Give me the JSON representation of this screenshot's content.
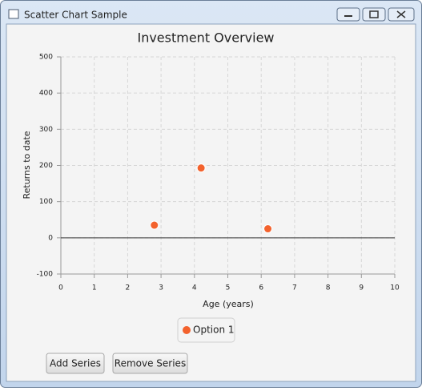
{
  "window": {
    "title": "Scatter Chart Sample"
  },
  "chart_data": {
    "type": "scatter",
    "title": "Investment Overview",
    "x_label": "Age (years)",
    "y_label": "Returns to date",
    "series": [
      {
        "name": "Option 1",
        "color": "#f3622d",
        "x": [
          2.8,
          4.2,
          6.2
        ],
        "values": [
          35,
          193,
          25
        ]
      }
    ],
    "xlim": [
      0,
      10
    ],
    "xticks": [
      0,
      1,
      2,
      3,
      4,
      5,
      6,
      7,
      8,
      9,
      10
    ],
    "ylim": [
      -100,
      500
    ],
    "yticks": [
      -100,
      0,
      100,
      200,
      300,
      400,
      500
    ],
    "grid": true,
    "legend": "bottom"
  },
  "buttons": [
    "Add Series",
    "Remove Series"
  ]
}
